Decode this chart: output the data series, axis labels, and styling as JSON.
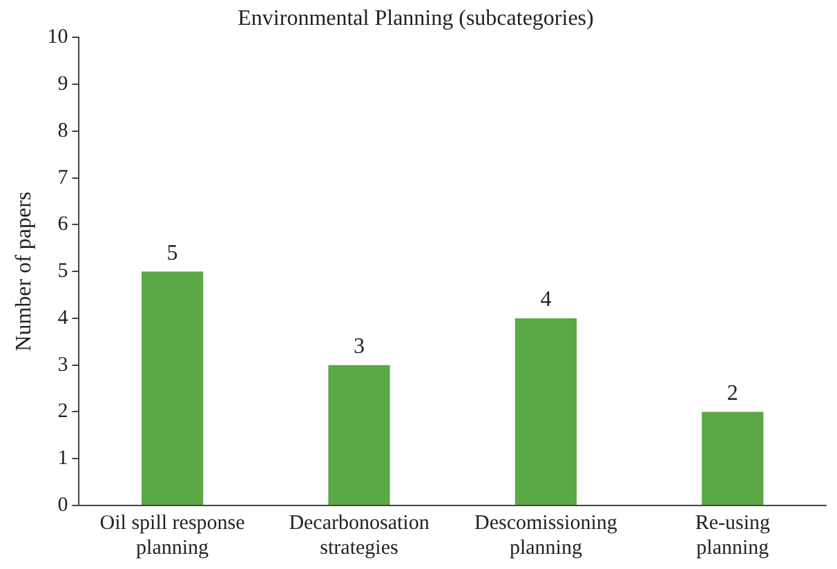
{
  "chart_data": {
    "type": "bar",
    "title": "Environmental Planning (subcategories)",
    "ylabel": "Number of papers",
    "categories": [
      "Oil spill response planning",
      "Decarbonosation strategies",
      "Descomissioning planning",
      "Re-using planning"
    ],
    "values": [
      5,
      3,
      4,
      2
    ],
    "color": "#5aa846",
    "ylim": [
      0,
      10
    ],
    "yticks": [
      0,
      1,
      2,
      3,
      4,
      5,
      6,
      7,
      8,
      9,
      10
    ],
    "grid": false,
    "legend": false,
    "data_labels": true
  }
}
